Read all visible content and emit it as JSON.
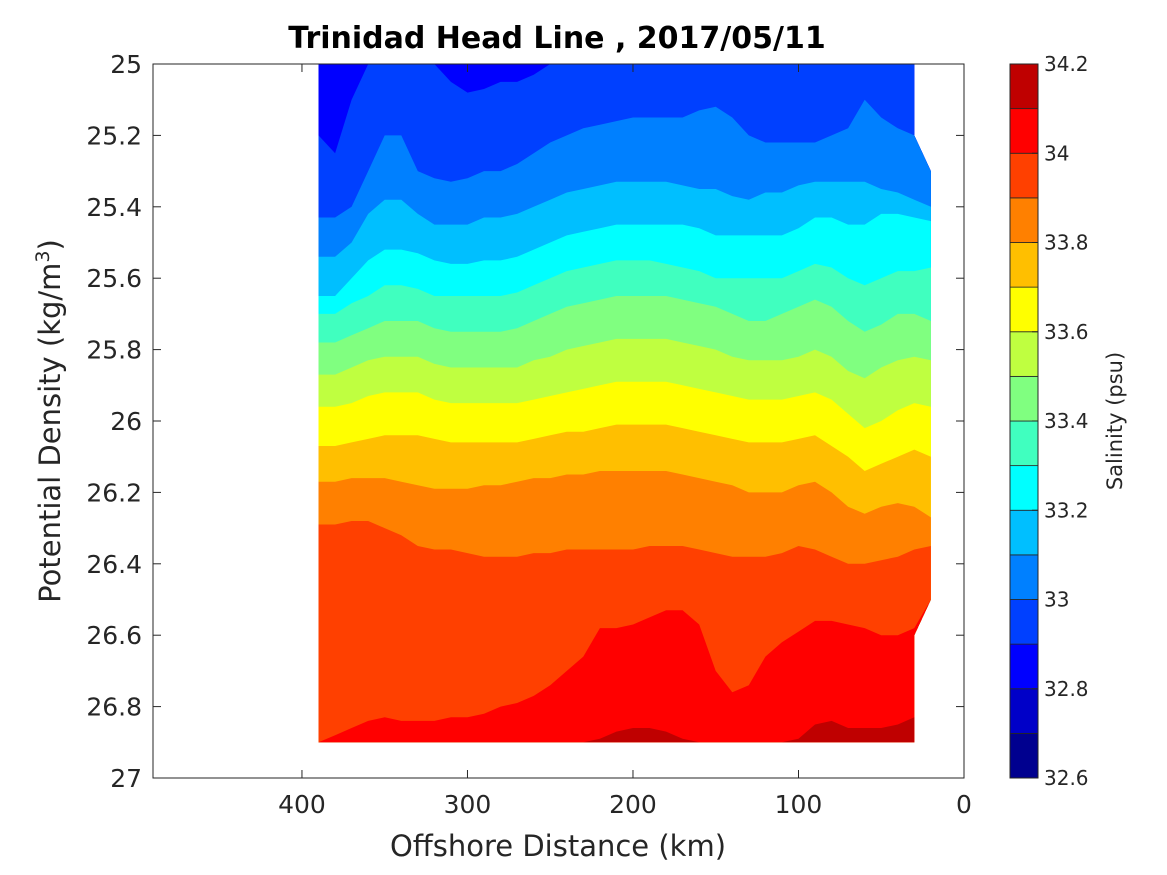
{
  "chart_data": {
    "type": "heatmap",
    "subtype": "filled-contour",
    "title": "Trinidad Head Line , 2017/05/11",
    "xlabel": "Offshore Distance (km)",
    "ylabel_main": "Potential Density (kg/m",
    "ylabel_sup": "3",
    "ylabel_close": ")",
    "colorbar_label": "Salinity (psu)",
    "x_reversed": true,
    "y_reversed": true,
    "xlim": [
      490,
      0
    ],
    "ylim": [
      25,
      27
    ],
    "xticks": [
      400,
      300,
      200,
      100,
      0
    ],
    "yticks": [
      "25",
      "25.2",
      "25.4",
      "25.6",
      "25.8",
      "26",
      "26.2",
      "26.4",
      "26.6",
      "26.8",
      "27"
    ],
    "colorbar_range": [
      32.6,
      34.2
    ],
    "colorbar_levels": [
      32.6,
      32.7,
      32.8,
      32.9,
      33.0,
      33.1,
      33.2,
      33.3,
      33.4,
      33.5,
      33.6,
      33.7,
      33.8,
      33.9,
      34.0,
      34.1,
      34.2
    ],
    "colorbar_ticks": [
      "32.6",
      "32.8",
      "33",
      "33.2",
      "33.4",
      "33.6",
      "33.8",
      "34",
      "34.2"
    ],
    "colorbar_colors": [
      "#00008f",
      "#0000c8",
      "#0000ff",
      "#0040ff",
      "#0080ff",
      "#00bfff",
      "#00ffff",
      "#40ffbf",
      "#80ff80",
      "#bfff40",
      "#ffff00",
      "#ffbf00",
      "#ff8000",
      "#ff4000",
      "#ff0000",
      "#bf0000"
    ],
    "data_extent": {
      "x_start": 390,
      "x_end": 20,
      "density_top": 25.0,
      "density_bottom": 26.9
    },
    "coast_edge": [
      {
        "x": 30,
        "density": 25.0
      },
      {
        "x": 30,
        "density": 25.2
      },
      {
        "x": 20,
        "density": 25.3
      },
      {
        "x": 20,
        "density": 26.5
      },
      {
        "x": 30,
        "density": 26.6
      },
      {
        "x": 30,
        "density": 26.9
      }
    ],
    "contour_x": [
      390,
      380,
      370,
      360,
      350,
      340,
      330,
      320,
      310,
      300,
      290,
      280,
      270,
      260,
      250,
      240,
      230,
      220,
      210,
      200,
      190,
      180,
      170,
      160,
      150,
      140,
      130,
      120,
      110,
      100,
      90,
      80,
      70,
      60,
      50,
      40,
      30,
      20
    ],
    "contour_boundaries": [
      {
        "level": 32.8,
        "density": [
          25.0,
          25.0,
          25.0,
          25.0,
          25.0,
          25.0,
          25.0,
          25.0,
          25.0,
          25.0,
          25.0,
          25.0,
          25.0,
          25.0,
          25.0,
          25.0,
          25.0,
          25.0,
          25.0,
          25.0,
          25.0,
          25.0,
          25.0,
          25.0,
          25.0,
          25.0,
          25.0,
          25.0,
          25.0,
          25.05,
          25.08,
          25.06,
          25.0,
          25.0,
          25.0,
          25.0,
          25.0,
          25.0
        ]
      },
      {
        "level": 32.9,
        "density": [
          25.2,
          25.25,
          25.1,
          25.0,
          25.0,
          25.0,
          25.0,
          25.0,
          25.05,
          25.08,
          25.07,
          25.05,
          25.05,
          25.03,
          25.0,
          25.0,
          25.0,
          25.0,
          25.0,
          25.0,
          25.0,
          25.0,
          25.0,
          25.0,
          25.0,
          25.0,
          25.0,
          25.0,
          25.0,
          25.0,
          25.0,
          25.0,
          25.0,
          25.0,
          25.0,
          25.0,
          25.0,
          25.0
        ]
      },
      {
        "level": 33.0,
        "density": [
          25.43,
          25.43,
          25.4,
          25.3,
          25.2,
          25.2,
          25.3,
          25.32,
          25.33,
          25.32,
          25.3,
          25.3,
          25.28,
          25.25,
          25.22,
          25.2,
          25.18,
          25.17,
          25.16,
          25.15,
          25.15,
          25.15,
          25.15,
          25.13,
          25.12,
          25.15,
          25.2,
          25.22,
          25.22,
          25.22,
          25.22,
          25.2,
          25.18,
          25.1,
          25.15,
          25.18,
          25.2,
          25.3
        ]
      },
      {
        "level": 33.1,
        "density": [
          25.54,
          25.54,
          25.5,
          25.42,
          25.38,
          25.38,
          25.42,
          25.45,
          25.45,
          25.45,
          25.43,
          25.43,
          25.42,
          25.4,
          25.38,
          25.36,
          25.35,
          25.34,
          25.33,
          25.33,
          25.33,
          25.33,
          25.34,
          25.35,
          25.35,
          25.37,
          25.38,
          25.36,
          25.36,
          25.34,
          25.33,
          25.33,
          25.33,
          25.33,
          25.35,
          25.36,
          25.38,
          25.4
        ]
      },
      {
        "level": 33.2,
        "density": [
          25.65,
          25.65,
          25.6,
          25.55,
          25.52,
          25.52,
          25.53,
          25.55,
          25.56,
          25.56,
          25.55,
          25.55,
          25.54,
          25.52,
          25.5,
          25.48,
          25.47,
          25.46,
          25.45,
          25.45,
          25.45,
          25.45,
          25.45,
          25.46,
          25.48,
          25.48,
          25.48,
          25.48,
          25.48,
          25.46,
          25.43,
          25.43,
          25.45,
          25.45,
          25.42,
          25.42,
          25.43,
          25.44
        ]
      },
      {
        "level": 33.3,
        "density": [
          25.7,
          25.7,
          25.67,
          25.65,
          25.62,
          25.62,
          25.63,
          25.65,
          25.65,
          25.65,
          25.65,
          25.65,
          25.64,
          25.62,
          25.6,
          25.58,
          25.57,
          25.56,
          25.55,
          25.55,
          25.55,
          25.56,
          25.57,
          25.58,
          25.6,
          25.6,
          25.6,
          25.6,
          25.6,
          25.58,
          25.56,
          25.57,
          25.6,
          25.62,
          25.6,
          25.58,
          25.58,
          25.57
        ]
      },
      {
        "level": 33.4,
        "density": [
          25.78,
          25.78,
          25.76,
          25.74,
          25.72,
          25.72,
          25.72,
          25.74,
          25.75,
          25.75,
          25.75,
          25.75,
          25.74,
          25.72,
          25.7,
          25.68,
          25.67,
          25.66,
          25.65,
          25.65,
          25.65,
          25.65,
          25.66,
          25.67,
          25.68,
          25.7,
          25.72,
          25.72,
          25.7,
          25.68,
          25.66,
          25.68,
          25.72,
          25.75,
          25.73,
          25.7,
          25.7,
          25.72
        ]
      },
      {
        "level": 33.5,
        "density": [
          25.87,
          25.87,
          25.85,
          25.83,
          25.82,
          25.82,
          25.82,
          25.84,
          25.85,
          25.85,
          25.85,
          25.85,
          25.85,
          25.83,
          25.82,
          25.8,
          25.79,
          25.78,
          25.77,
          25.77,
          25.77,
          25.77,
          25.78,
          25.79,
          25.8,
          25.82,
          25.83,
          25.83,
          25.83,
          25.82,
          25.8,
          25.82,
          25.86,
          25.88,
          25.85,
          25.83,
          25.82,
          25.83
        ]
      },
      {
        "level": 33.6,
        "density": [
          25.96,
          25.96,
          25.95,
          25.93,
          25.92,
          25.92,
          25.92,
          25.94,
          25.95,
          25.95,
          25.95,
          25.95,
          25.95,
          25.94,
          25.93,
          25.92,
          25.91,
          25.9,
          25.89,
          25.89,
          25.89,
          25.89,
          25.9,
          25.91,
          25.92,
          25.93,
          25.94,
          25.94,
          25.94,
          25.93,
          25.92,
          25.94,
          25.98,
          26.02,
          26.0,
          25.97,
          25.95,
          25.96
        ]
      },
      {
        "level": 33.7,
        "density": [
          26.07,
          26.07,
          26.06,
          26.05,
          26.04,
          26.04,
          26.04,
          26.05,
          26.06,
          26.06,
          26.06,
          26.06,
          26.06,
          26.05,
          26.04,
          26.03,
          26.03,
          26.02,
          26.01,
          26.01,
          26.01,
          26.01,
          26.02,
          26.03,
          26.04,
          26.05,
          26.06,
          26.06,
          26.06,
          26.05,
          26.04,
          26.07,
          26.1,
          26.14,
          26.12,
          26.1,
          26.08,
          26.1
        ]
      },
      {
        "level": 33.8,
        "density": [
          26.17,
          26.17,
          26.16,
          26.16,
          26.16,
          26.17,
          26.18,
          26.19,
          26.19,
          26.19,
          26.18,
          26.18,
          26.17,
          26.16,
          26.16,
          26.15,
          26.15,
          26.14,
          26.14,
          26.14,
          26.14,
          26.14,
          26.15,
          26.16,
          26.17,
          26.18,
          26.2,
          26.2,
          26.2,
          26.18,
          26.17,
          26.2,
          26.24,
          26.26,
          26.24,
          26.23,
          26.24,
          26.27
        ]
      },
      {
        "level": 33.9,
        "density": [
          26.29,
          26.29,
          26.28,
          26.28,
          26.3,
          26.32,
          26.35,
          26.36,
          26.36,
          26.37,
          26.38,
          26.38,
          26.38,
          26.37,
          26.37,
          26.36,
          26.36,
          26.36,
          26.36,
          26.36,
          26.35,
          26.35,
          26.35,
          26.36,
          26.37,
          26.38,
          26.38,
          26.38,
          26.37,
          26.35,
          26.36,
          26.38,
          26.4,
          26.4,
          26.39,
          26.38,
          26.36,
          26.35
        ]
      },
      {
        "level": 34.0,
        "density": [
          26.9,
          26.88,
          26.86,
          26.84,
          26.83,
          26.84,
          26.84,
          26.84,
          26.83,
          26.83,
          26.82,
          26.8,
          26.79,
          26.77,
          26.74,
          26.7,
          26.66,
          26.58,
          26.58,
          26.57,
          26.55,
          26.53,
          26.53,
          26.57,
          26.7,
          26.76,
          26.74,
          26.66,
          26.62,
          26.59,
          26.56,
          26.56,
          26.57,
          26.58,
          26.6,
          26.6,
          26.58,
          26.5
        ]
      },
      {
        "level": 34.1,
        "density": [
          26.9,
          26.9,
          26.9,
          26.9,
          26.9,
          26.9,
          26.9,
          26.9,
          26.9,
          26.9,
          26.9,
          26.9,
          26.9,
          26.9,
          26.9,
          26.9,
          26.9,
          26.89,
          26.87,
          26.86,
          26.86,
          26.87,
          26.89,
          26.9,
          26.9,
          26.9,
          26.9,
          26.9,
          26.9,
          26.89,
          26.85,
          26.84,
          26.86,
          26.86,
          26.86,
          26.85,
          26.83,
          26.83
        ]
      }
    ]
  }
}
